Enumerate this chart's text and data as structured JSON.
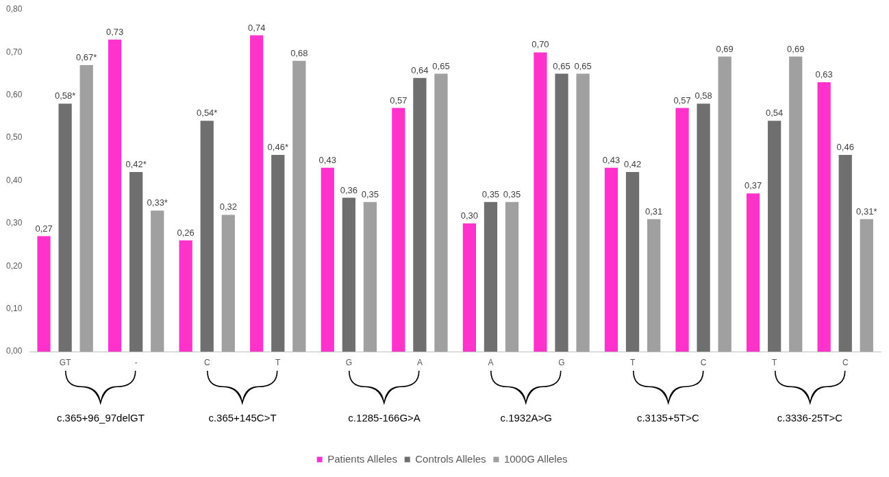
{
  "chart_data": {
    "type": "bar",
    "categories": [
      "GT",
      "-",
      "C",
      "T",
      "G",
      "A",
      "A",
      "G",
      "T",
      "C",
      "T",
      "C"
    ],
    "series": [
      {
        "name": "Patients Alleles",
        "color": "#ff33cc",
        "values": [
          0.27,
          0.73,
          0.26,
          0.74,
          0.43,
          0.57,
          0.3,
          0.7,
          0.43,
          0.57,
          0.37,
          0.63
        ],
        "value_labels": [
          "0,27",
          "0,73",
          "0,26",
          "0,74",
          "0,43",
          "0,57",
          "0,30",
          "0,70",
          "0,43",
          "0,57",
          "0,37",
          "0,63"
        ]
      },
      {
        "name": "Controls Alleles",
        "color": "#6f6f6f",
        "values": [
          0.58,
          0.42,
          0.54,
          0.46,
          0.36,
          0.64,
          0.35,
          0.65,
          0.42,
          0.58,
          0.54,
          0.46
        ],
        "value_labels": [
          "0,58*",
          "0,42*",
          "0,54*",
          "0,46*",
          "0,36",
          "0,64",
          "0,35",
          "0,65",
          "0,42",
          "0,58",
          "0,54",
          "0,46"
        ]
      },
      {
        "name": "1000G Alleles",
        "color": "#a0a0a0",
        "values": [
          0.67,
          0.33,
          0.32,
          0.68,
          0.35,
          0.65,
          0.35,
          0.65,
          0.31,
          0.69,
          0.69,
          0.31
        ],
        "value_labels": [
          "0,67*",
          "0,33*",
          "0,32",
          "0,68",
          "0,35",
          "0,65",
          "0,35",
          "0,65",
          "0,31",
          "0,69",
          "0,69",
          "0,31*"
        ]
      }
    ],
    "ylim": [
      0,
      0.8
    ],
    "yticks": [
      {
        "value": 0,
        "label": "0,00"
      },
      {
        "value": 0.1,
        "label": "0,10"
      },
      {
        "value": 0.2,
        "label": "0,20"
      },
      {
        "value": 0.3,
        "label": "0,30"
      },
      {
        "value": 0.4,
        "label": "0,40"
      },
      {
        "value": 0.5,
        "label": "0,50"
      },
      {
        "value": 0.6,
        "label": "0,60"
      },
      {
        "value": 0.7,
        "label": "0,70"
      },
      {
        "value": 0.8,
        "label": "0,80"
      }
    ],
    "annotations": [
      "c.365+96_97delGT",
      "c.365+145C>T",
      "c.1285-166G>A",
      "c.1932A>G",
      "c.3135+5T>C",
      "c.3336-25T>C"
    ],
    "grid": false,
    "legend": "bottom"
  }
}
